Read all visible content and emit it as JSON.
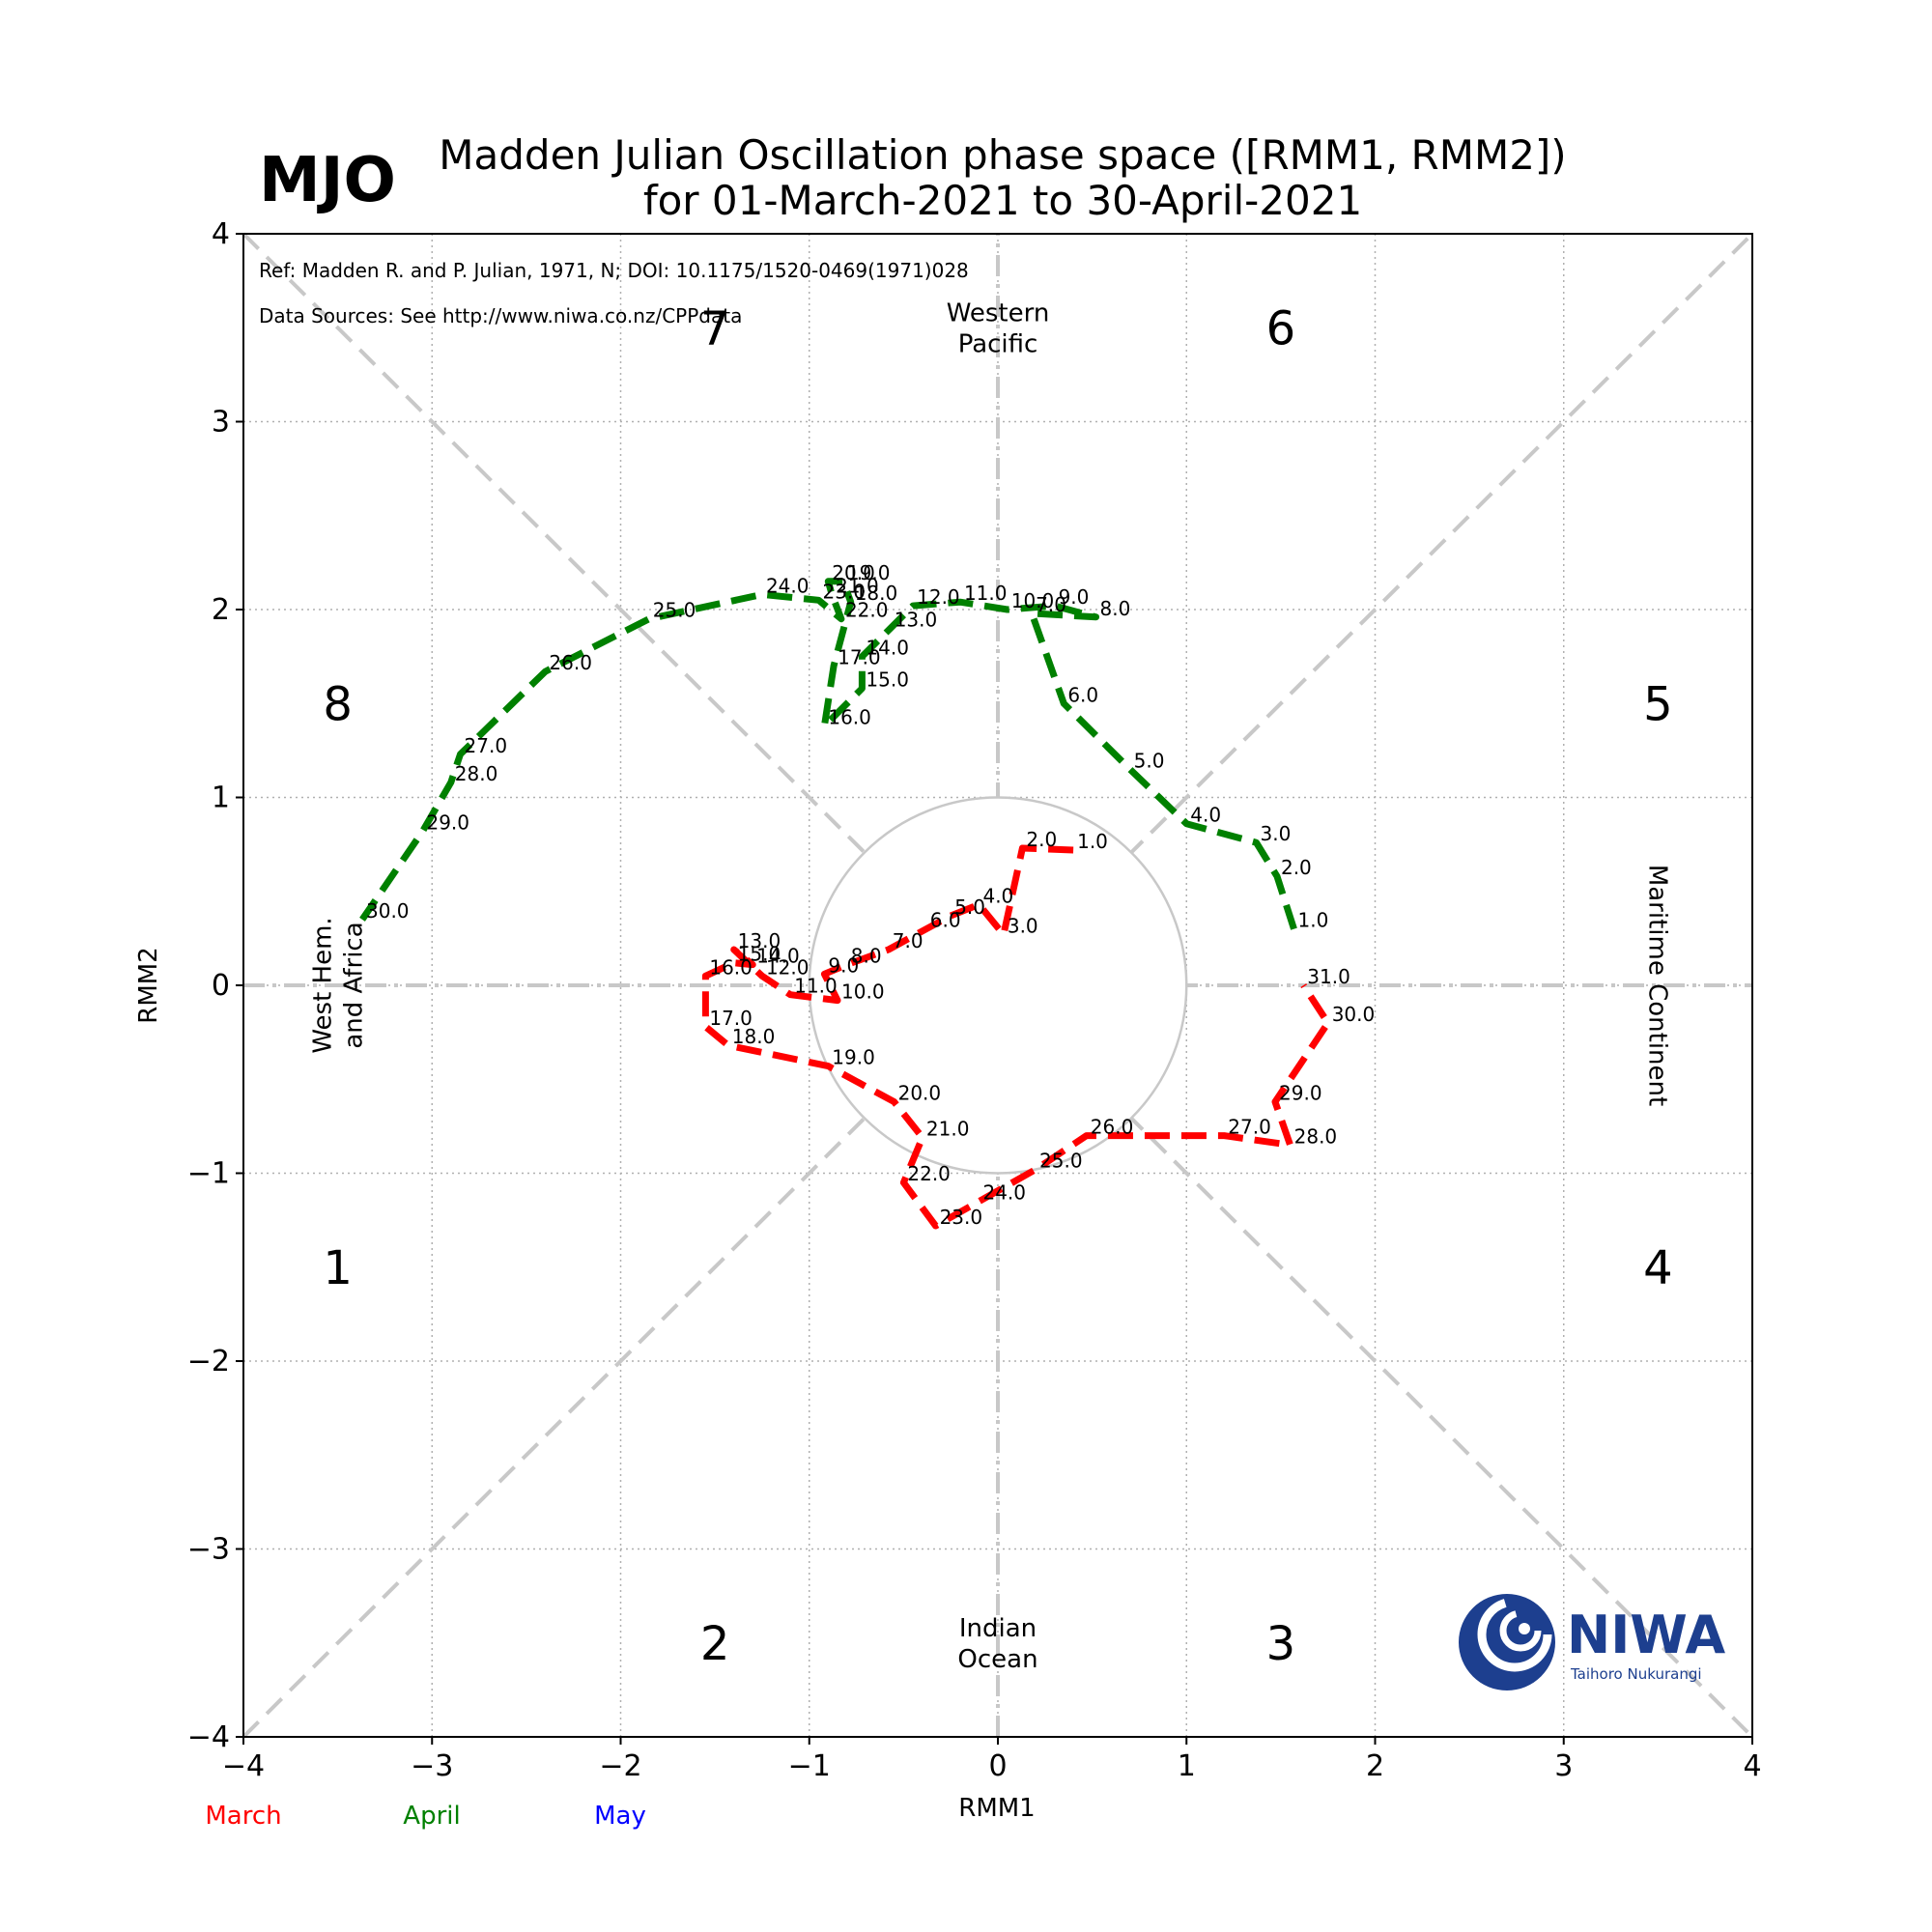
{
  "badge": "MJO",
  "title_line1": "Madden Julian Oscillation phase space ([RMM1, RMM2])",
  "title_line2": "for 01-March-2021 to 30-April-2021",
  "ref_text": "Ref: Madden R. and P. Julian, 1971, N; DOI: 10.1175/1520-0469(1971)028",
  "sources_text": "Data Sources: See http://www.niwa.co.nz/CPPdata",
  "logo": {
    "name": "NIWA",
    "tagline": "Taihoro Nukurangi"
  },
  "month_legend": [
    {
      "label": "March",
      "color": "#ff0000"
    },
    {
      "label": "April",
      "color": "#008000"
    },
    {
      "label": "May",
      "color": "#0000ff"
    }
  ],
  "chart_data": {
    "type": "line",
    "xlabel": "RMM1",
    "ylabel": "RMM2",
    "xlim": [
      -4,
      4
    ],
    "ylim": [
      -4,
      4
    ],
    "xticks": [
      -4,
      -3,
      -2,
      -1,
      0,
      1,
      2,
      3,
      4
    ],
    "yticks": [
      -4,
      -3,
      -2,
      -1,
      0,
      1,
      2,
      3,
      4
    ],
    "xtick_labels": [
      "−4",
      "−3",
      "−2",
      "−1",
      "0",
      "1",
      "2",
      "3",
      "4"
    ],
    "ytick_labels": [
      "−4",
      "−3",
      "−2",
      "−1",
      "0",
      "1",
      "2",
      "3",
      "4"
    ],
    "grid": true,
    "unit_circle_radius": 1,
    "phases": [
      {
        "label": "1",
        "x": -3.5,
        "y": -1.5
      },
      {
        "label": "2",
        "x": -1.5,
        "y": -3.5
      },
      {
        "label": "3",
        "x": 1.5,
        "y": -3.5
      },
      {
        "label": "4",
        "x": 3.5,
        "y": -1.5
      },
      {
        "label": "5",
        "x": 3.5,
        "y": 1.5
      },
      {
        "label": "6",
        "x": 1.5,
        "y": 3.5
      },
      {
        "label": "7",
        "x": -1.5,
        "y": 3.5
      },
      {
        "label": "8",
        "x": -3.5,
        "y": 1.5
      }
    ],
    "regions": [
      {
        "label": "Western\nPacific",
        "x": 0,
        "y": 3.5,
        "rotate": 0
      },
      {
        "label": "Indian\nOcean",
        "x": 0,
        "y": -3.5,
        "rotate": 0
      },
      {
        "label": "West Hem.\nand Africa",
        "x": -3.5,
        "y": 0,
        "rotate": -90
      },
      {
        "label": "Maritime Continent",
        "x": 3.5,
        "y": 0,
        "rotate": 90
      }
    ],
    "series": [
      {
        "name": "March",
        "color": "#ff0000",
        "points": [
          {
            "label": "1.0",
            "x": 0.4,
            "y": 0.72
          },
          {
            "label": "2.0",
            "x": 0.13,
            "y": 0.73
          },
          {
            "label": "3.0",
            "x": 0.03,
            "y": 0.27
          },
          {
            "label": "4.0",
            "x": -0.1,
            "y": 0.43
          },
          {
            "label": "5.0",
            "x": -0.25,
            "y": 0.37
          },
          {
            "label": "6.0",
            "x": -0.38,
            "y": 0.3
          },
          {
            "label": "7.0",
            "x": -0.58,
            "y": 0.19
          },
          {
            "label": "8.0",
            "x": -0.8,
            "y": 0.11
          },
          {
            "label": "9.0",
            "x": -0.92,
            "y": 0.06
          },
          {
            "label": "10.0",
            "x": -0.85,
            "y": -0.08
          },
          {
            "label": "11.0",
            "x": -1.1,
            "y": -0.05
          },
          {
            "label": "12.0",
            "x": -1.25,
            "y": 0.05
          },
          {
            "label": "13.0",
            "x": -1.4,
            "y": 0.19
          },
          {
            "label": "14.0",
            "x": -1.3,
            "y": 0.11
          },
          {
            "label": "15.0",
            "x": -1.4,
            "y": 0.12
          },
          {
            "label": "16.0",
            "x": -1.55,
            "y": 0.05
          },
          {
            "label": "17.0",
            "x": -1.55,
            "y": -0.22
          },
          {
            "label": "18.0",
            "x": -1.43,
            "y": -0.32
          },
          {
            "label": "19.0",
            "x": -0.9,
            "y": -0.43
          },
          {
            "label": "20.0",
            "x": -0.55,
            "y": -0.62
          },
          {
            "label": "21.0",
            "x": -0.4,
            "y": -0.81
          },
          {
            "label": "22.0",
            "x": -0.5,
            "y": -1.05
          },
          {
            "label": "23.0",
            "x": -0.33,
            "y": -1.28
          },
          {
            "label": "24.0",
            "x": -0.1,
            "y": -1.15
          },
          {
            "label": "25.0",
            "x": 0.2,
            "y": -0.98
          },
          {
            "label": "26.0",
            "x": 0.47,
            "y": -0.8
          },
          {
            "label": "27.0",
            "x": 1.2,
            "y": -0.8
          },
          {
            "label": "28.0",
            "x": 1.55,
            "y": -0.85
          },
          {
            "label": "29.0",
            "x": 1.47,
            "y": -0.62
          },
          {
            "label": "30.0",
            "x": 1.75,
            "y": -0.2
          },
          {
            "label": "31.0",
            "x": 1.62,
            "y": 0.0
          }
        ]
      },
      {
        "name": "April",
        "color": "#008000",
        "points": [
          {
            "label": "1.0",
            "x": 1.57,
            "y": 0.3
          },
          {
            "label": "2.0",
            "x": 1.48,
            "y": 0.58
          },
          {
            "label": "3.0",
            "x": 1.37,
            "y": 0.76
          },
          {
            "label": "4.0",
            "x": 1.0,
            "y": 0.86
          },
          {
            "label": "5.0",
            "x": 0.7,
            "y": 1.15
          },
          {
            "label": "6.0",
            "x": 0.35,
            "y": 1.5
          },
          {
            "label": "7.0",
            "x": 0.18,
            "y": 1.98
          },
          {
            "label": "8.0",
            "x": 0.52,
            "y": 1.96
          },
          {
            "label": "9.0",
            "x": 0.3,
            "y": 2.02
          },
          {
            "label": "10.0",
            "x": 0.05,
            "y": 2.0
          },
          {
            "label": "11.0",
            "x": -0.2,
            "y": 2.04
          },
          {
            "label": "12.0",
            "x": -0.45,
            "y": 2.02
          },
          {
            "label": "13.0",
            "x": -0.57,
            "y": 1.9
          },
          {
            "label": "14.0",
            "x": -0.72,
            "y": 1.75
          },
          {
            "label": "15.0",
            "x": -0.72,
            "y": 1.58
          },
          {
            "label": "16.0",
            "x": -0.92,
            "y": 1.38
          },
          {
            "label": "17.0",
            "x": -0.87,
            "y": 1.7
          },
          {
            "label": "18.0",
            "x": -0.78,
            "y": 2.04
          },
          {
            "label": "19.0",
            "x": -0.82,
            "y": 2.15
          },
          {
            "label": "20.0",
            "x": -0.9,
            "y": 2.15
          },
          {
            "label": "21.0",
            "x": -0.88,
            "y": 2.08
          },
          {
            "label": "22.0",
            "x": -0.83,
            "y": 1.95
          },
          {
            "label": "23.0",
            "x": -0.95,
            "y": 2.05
          },
          {
            "label": "24.0",
            "x": -1.25,
            "y": 2.08
          },
          {
            "label": "25.0",
            "x": -1.85,
            "y": 1.95
          },
          {
            "label": "26.0",
            "x": -2.4,
            "y": 1.67
          },
          {
            "label": "27.0",
            "x": -2.85,
            "y": 1.23
          },
          {
            "label": "28.0",
            "x": -2.9,
            "y": 1.08
          },
          {
            "label": "29.0",
            "x": -3.05,
            "y": 0.82
          },
          {
            "label": "30.0",
            "x": -3.37,
            "y": 0.35
          }
        ]
      }
    ]
  }
}
